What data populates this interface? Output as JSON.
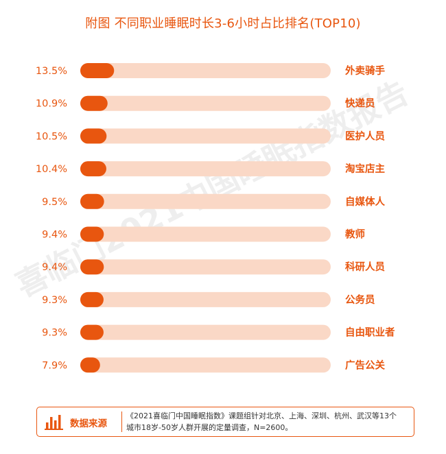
{
  "title": "附图 不同职业睡眠时长3-6小时占比排名(TOP10)",
  "watermark": "喜临门2021中国睡眠指数报告",
  "colors": {
    "accent": "#e8560f",
    "track": "#fad8c6",
    "bar": "#e8560f"
  },
  "chart_data": {
    "type": "bar",
    "orientation": "horizontal",
    "title": "附图 不同职业睡眠时长3-6小时占比排名(TOP10)",
    "categories": [
      "外卖骑手",
      "快递员",
      "医护人员",
      "淘宝店主",
      "自媒体人",
      "教师",
      "科研人员",
      "公务员",
      "自由职业者",
      "广告公关"
    ],
    "values": [
      13.5,
      10.9,
      10.5,
      10.4,
      9.5,
      9.4,
      9.4,
      9.3,
      9.3,
      7.9
    ],
    "value_labels": [
      "13.5%",
      "10.9%",
      "10.5%",
      "10.4%",
      "9.5%",
      "9.4%",
      "9.4%",
      "9.3%",
      "9.3%",
      "7.9%"
    ],
    "unit": "%",
    "xlim": [
      0,
      100
    ],
    "grid": false
  },
  "source": {
    "icon": "bar-chart-icon",
    "tag": "数据来源",
    "line1": "《2021喜临门中国睡眠指数》课题组针对北京、上海、深圳、杭州、武汉等13个",
    "line2": "城市18岁-50岁人群开展的定量调查，N=2600。"
  }
}
